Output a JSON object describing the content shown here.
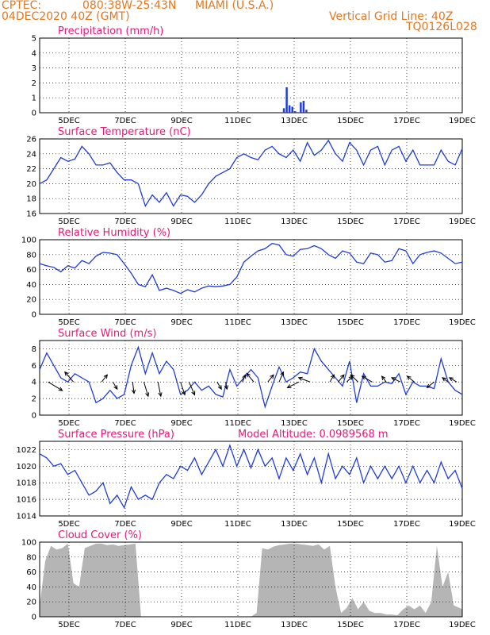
{
  "header": {
    "source": "CPTEC:",
    "coords": "080:38W-25:43N",
    "location": "MIAMI (U.S.A.)",
    "date": "04DEC2020 40Z (GMT)",
    "grid_note": "Vertical Grid Line: 40Z",
    "code": "TQ0126L028"
  },
  "chart_data": [
    {
      "type": "bar",
      "title": "Precipitation (mm/h)",
      "x_ticks": [
        "5DEC",
        "7DEC",
        "9DEC",
        "11DEC",
        "13DEC",
        "15DEC",
        "17DEC",
        "19DEC"
      ],
      "ylim": [
        0,
        5
      ],
      "y_ticks": [
        0,
        1,
        2,
        3,
        4,
        5
      ],
      "x": [
        8.8,
        8.85,
        8.9,
        8.95,
        9.0,
        9.1,
        9.15,
        9.2
      ],
      "values": [
        0.3,
        1.7,
        0.5,
        0.4,
        0.1,
        0.7,
        0.8,
        0.2
      ],
      "color": "#1f3cdb"
    },
    {
      "type": "line",
      "title": "Surface Temperature (nC)",
      "x_ticks": [
        "5DEC",
        "7DEC",
        "9DEC",
        "11DEC",
        "13DEC",
        "15DEC",
        "17DEC",
        "19DEC"
      ],
      "ylim": [
        16,
        26
      ],
      "y_ticks": [
        16,
        18,
        20,
        22,
        24,
        26
      ],
      "x": [
        0,
        0.25,
        0.5,
        0.75,
        1,
        1.25,
        1.5,
        1.75,
        2,
        2.25,
        2.5,
        2.75,
        3,
        3.25,
        3.5,
        3.75,
        4,
        4.25,
        4.5,
        4.75,
        5,
        5.25,
        5.5,
        5.75,
        6,
        6.25,
        6.5,
        6.75,
        7,
        7.25,
        7.5,
        7.75,
        8,
        8.25,
        8.5,
        8.75,
        9,
        9.25,
        9.5,
        9.75,
        10,
        10.25,
        10.5,
        10.75,
        11,
        11.25,
        11.5,
        11.75,
        12,
        12.25,
        12.5,
        12.75,
        13,
        13.25,
        13.5,
        13.75,
        14,
        14.25,
        14.5,
        14.75,
        15
      ],
      "values": [
        20,
        20.5,
        22,
        23.5,
        23,
        23.3,
        25,
        24,
        22.5,
        22.5,
        22.8,
        21.5,
        20.5,
        20.5,
        20,
        17,
        18.5,
        17.5,
        18.8,
        17,
        18.5,
        18.3,
        17.5,
        18.5,
        20,
        21,
        21.5,
        22,
        23.5,
        24,
        23.5,
        23.2,
        24.5,
        25,
        24,
        23.5,
        24.5,
        23,
        25.5,
        23.8,
        24.5,
        25.8,
        24,
        23,
        25.5,
        24.5,
        22.5,
        24.5,
        25,
        22.5,
        24.5,
        25,
        23,
        24.5,
        22.5,
        22.5,
        22.5,
        24.5,
        23,
        22.5,
        24.7
      ],
      "color": "#1f3cdb"
    },
    {
      "type": "line",
      "title": "Relative Humidity (%)",
      "x_ticks": [
        "5DEC",
        "7DEC",
        "9DEC",
        "11DEC",
        "13DEC",
        "15DEC",
        "17DEC",
        "19DEC"
      ],
      "ylim": [
        0,
        100
      ],
      "y_ticks": [
        0,
        20,
        40,
        60,
        80,
        100
      ],
      "x": [
        0,
        0.25,
        0.5,
        0.75,
        1,
        1.25,
        1.5,
        1.75,
        2,
        2.25,
        2.5,
        2.75,
        3,
        3.25,
        3.5,
        3.75,
        4,
        4.25,
        4.5,
        4.75,
        5,
        5.25,
        5.5,
        5.75,
        6,
        6.25,
        6.5,
        6.75,
        7,
        7.25,
        7.5,
        7.75,
        8,
        8.25,
        8.5,
        8.75,
        9,
        9.25,
        9.5,
        9.75,
        10,
        10.25,
        10.5,
        10.75,
        11,
        11.25,
        11.5,
        11.75,
        12,
        12.25,
        12.5,
        12.75,
        13,
        13.25,
        13.5,
        13.75,
        14,
        14.25,
        14.5,
        14.75,
        15
      ],
      "values": [
        68,
        65,
        63,
        57,
        65,
        62,
        72,
        68,
        78,
        83,
        82,
        80,
        68,
        55,
        40,
        37,
        53,
        32,
        35,
        32,
        28,
        33,
        30,
        35,
        38,
        37,
        38,
        40,
        50,
        70,
        78,
        85,
        88,
        95,
        93,
        80,
        78,
        87,
        88,
        92,
        88,
        80,
        75,
        85,
        82,
        70,
        68,
        82,
        80,
        70,
        72,
        88,
        85,
        68,
        80,
        83,
        85,
        82,
        75,
        68,
        70
      ],
      "color": "#1f3cdb"
    },
    {
      "type": "line",
      "title": "Surface Wind (m/s)",
      "x_ticks": [
        "5DEC",
        "7DEC",
        "9DEC",
        "11DEC",
        "13DEC",
        "15DEC",
        "17DEC",
        "19DEC"
      ],
      "ylim": [
        0,
        9
      ],
      "y_ticks": [
        0,
        2,
        4,
        6,
        8
      ],
      "x": [
        0,
        0.25,
        0.5,
        0.75,
        1,
        1.25,
        1.5,
        1.75,
        2,
        2.25,
        2.5,
        2.75,
        3,
        3.25,
        3.5,
        3.75,
        4,
        4.25,
        4.5,
        4.75,
        5,
        5.25,
        5.5,
        5.75,
        6,
        6.25,
        6.5,
        6.75,
        7,
        7.25,
        7.5,
        7.75,
        8,
        8.25,
        8.5,
        8.75,
        9,
        9.25,
        9.5,
        9.75,
        10,
        10.25,
        10.5,
        10.75,
        11,
        11.25,
        11.5,
        11.75,
        12,
        12.25,
        12.5,
        12.75,
        13,
        13.25,
        13.5,
        13.75,
        14,
        14.25,
        14.5,
        14.75,
        15
      ],
      "values": [
        5.5,
        7.5,
        6,
        4.5,
        4,
        5,
        4.5,
        4,
        1.5,
        2,
        3,
        2,
        2.5,
        6,
        8.2,
        5,
        7.5,
        5,
        6.5,
        5.5,
        2.5,
        3,
        4,
        3,
        3.5,
        2.5,
        2.2,
        5.5,
        3.5,
        4.5,
        5.5,
        4.5,
        1,
        3.5,
        5.8,
        4,
        4.5,
        5.2,
        5,
        8,
        6.5,
        5.5,
        4.5,
        3.5,
        6.5,
        1.5,
        5,
        3.5,
        3.5,
        4,
        3.8,
        5,
        2.5,
        4,
        3.5,
        3.5,
        3.2,
        6.8,
        4,
        3,
        2.5
      ],
      "arrows": [
        {
          "x": 0.3,
          "u": 1,
          "v": -0.6
        },
        {
          "x": 1.2,
          "u": -0.6,
          "v": 0.7
        },
        {
          "x": 2.2,
          "u": 0.4,
          "v": 0.5
        },
        {
          "x": 2.6,
          "u": 0.3,
          "v": -0.5
        },
        {
          "x": 3.3,
          "u": 0.1,
          "v": -0.8
        },
        {
          "x": 3.7,
          "u": 0.3,
          "v": -1
        },
        {
          "x": 4.2,
          "u": 0.2,
          "v": -1
        },
        {
          "x": 5,
          "u": 0.3,
          "v": -0.9
        },
        {
          "x": 5.3,
          "u": 0.4,
          "v": -0.9
        },
        {
          "x": 6.3,
          "u": 0.3,
          "v": -0.5
        },
        {
          "x": 6.6,
          "u": 0.1,
          "v": -0.5
        },
        {
          "x": 7.2,
          "u": 0.2,
          "v": 0.5
        },
        {
          "x": 7.6,
          "u": -0.5,
          "v": 0.6
        },
        {
          "x": 8.1,
          "u": 0.4,
          "v": 0.5
        },
        {
          "x": 8.5,
          "u": 0.3,
          "v": 0.7
        },
        {
          "x": 9.2,
          "u": -0.8,
          "v": -0.4
        },
        {
          "x": 9.6,
          "u": -0.8,
          "v": 0.3
        },
        {
          "x": 10.3,
          "u": 0.3,
          "v": 0.5
        },
        {
          "x": 10.6,
          "u": 0.4,
          "v": 0.5
        },
        {
          "x": 10.9,
          "u": 0.4,
          "v": 0.4
        },
        {
          "x": 11.3,
          "u": -0.5,
          "v": 0.5
        },
        {
          "x": 11.8,
          "u": -0.7,
          "v": 0.4
        },
        {
          "x": 12.3,
          "u": -0.3,
          "v": 0.4
        },
        {
          "x": 12.8,
          "u": -0.6,
          "v": 0.3
        },
        {
          "x": 13.3,
          "u": -0.5,
          "v": 0.4
        },
        {
          "x": 14,
          "u": -0.5,
          "v": -0.4
        },
        {
          "x": 14.5,
          "u": -0.4,
          "v": 0.3
        },
        {
          "x": 14.8,
          "u": -0.5,
          "v": 0.3
        }
      ],
      "color": "#1f3cdb"
    },
    {
      "type": "line",
      "title": "Surface Pressure (hPa)",
      "annotation": "Model Altitude: 0.0989568 m",
      "x_ticks": [
        "5DEC",
        "7DEC",
        "9DEC",
        "11DEC",
        "13DEC",
        "15DEC",
        "17DEC",
        "19DEC"
      ],
      "ylim": [
        1014,
        1023
      ],
      "y_ticks": [
        1014,
        1016,
        1018,
        1020,
        1022
      ],
      "x": [
        0,
        0.25,
        0.5,
        0.75,
        1,
        1.25,
        1.5,
        1.75,
        2,
        2.25,
        2.5,
        2.75,
        3,
        3.25,
        3.5,
        3.75,
        4,
        4.25,
        4.5,
        4.75,
        5,
        5.25,
        5.5,
        5.75,
        6,
        6.25,
        6.5,
        6.75,
        7,
        7.25,
        7.5,
        7.75,
        8,
        8.25,
        8.5,
        8.75,
        9,
        9.25,
        9.5,
        9.75,
        10,
        10.25,
        10.5,
        10.75,
        11,
        11.25,
        11.5,
        11.75,
        12,
        12.25,
        12.5,
        12.75,
        13,
        13.25,
        13.5,
        13.75,
        14,
        14.25,
        14.5,
        14.75,
        15
      ],
      "values": [
        1021.5,
        1021,
        1020,
        1020.3,
        1019,
        1019.5,
        1018,
        1016.5,
        1017,
        1018,
        1015.5,
        1016.5,
        1015,
        1017.5,
        1016,
        1016.5,
        1016,
        1018,
        1019,
        1018.5,
        1020,
        1019.5,
        1021,
        1019,
        1020.5,
        1022,
        1020,
        1022.5,
        1020,
        1022,
        1019.8,
        1022,
        1020,
        1021,
        1018.5,
        1021,
        1019.5,
        1021.5,
        1019,
        1021,
        1018,
        1021.5,
        1018.5,
        1020,
        1019,
        1021,
        1018,
        1020,
        1018.5,
        1020,
        1018.5,
        1020,
        1018,
        1020,
        1018,
        1019.5,
        1018,
        1020.5,
        1018.5,
        1019.5,
        1017.3
      ],
      "color": "#1f3cdb"
    },
    {
      "type": "area",
      "title": "Cloud Cover (%)",
      "x_ticks": [
        "5DEC",
        "7DEC",
        "9DEC",
        "11DEC",
        "13DEC",
        "15DEC",
        "17DEC",
        "19DEC"
      ],
      "ylim": [
        0,
        100
      ],
      "y_ticks": [
        0,
        20,
        40,
        60,
        80,
        100
      ],
      "x": [
        0,
        0.2,
        0.4,
        0.6,
        0.8,
        1,
        1.2,
        1.4,
        1.6,
        1.8,
        2,
        2.2,
        2.4,
        2.6,
        2.8,
        3,
        3.2,
        3.4,
        3.6,
        3.8,
        4,
        4.5,
        5,
        5.5,
        6,
        6.5,
        7,
        7.5,
        7.7,
        7.9,
        8.1,
        8.3,
        8.5,
        8.7,
        8.9,
        9.1,
        9.3,
        9.5,
        9.7,
        9.9,
        10.1,
        10.3,
        10.5,
        10.7,
        10.9,
        11.1,
        11.3,
        11.5,
        11.7,
        11.9,
        12.1,
        12.3,
        12.5,
        12.7,
        12.9,
        13.1,
        13.3,
        13.5,
        13.7,
        13.9,
        14.1,
        14.3,
        14.5,
        14.7,
        14.9,
        15
      ],
      "values": [
        15,
        75,
        95,
        90,
        92,
        98,
        45,
        40,
        92,
        95,
        98,
        98,
        96,
        97,
        95,
        96,
        97,
        98,
        0,
        0,
        0,
        0,
        0,
        0,
        0,
        0,
        0,
        0,
        5,
        92,
        90,
        94,
        96,
        97,
        98,
        98,
        97,
        96,
        95,
        97,
        90,
        95,
        40,
        5,
        12,
        25,
        10,
        20,
        8,
        5,
        5,
        3,
        3,
        2,
        10,
        15,
        10,
        15,
        5,
        20,
        95,
        40,
        60,
        15,
        12,
        10
      ],
      "color": "#b5b5b5"
    }
  ]
}
